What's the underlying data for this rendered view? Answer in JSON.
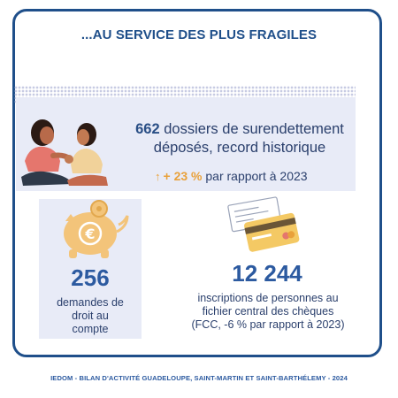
{
  "header": {
    "title": "...AU SERVICE DES PLUS FRAGILES"
  },
  "stat_dossiers": {
    "value": "662",
    "text_line1": " dossiers de surendettement",
    "text_line2": "déposés, record historique",
    "change_arrow": "↑",
    "change_value": "+ 23 %",
    "change_text": " par rapport à 2023"
  },
  "stat_compte": {
    "value": "256",
    "text_line1": "demandes de",
    "text_line2": "droit au",
    "text_line3": "compte"
  },
  "stat_fcc": {
    "value": "12 244",
    "text_line1": "inscriptions de personnes au",
    "text_line2": "fichier central des chèques",
    "text_line3": "(FCC, -6 % par rapport à 2023)"
  },
  "footer": {
    "text": "IEDOM - BILAN D'ACTIVITÉ GUADELOUPE, SAINT-MARTIN ET SAINT-BARTHÉLEMY - 2024"
  },
  "colors": {
    "primary": "#1f4f8a",
    "accent": "#e9a13b",
    "band": "#e8ebf7",
    "text": "#2a3f6c"
  },
  "icons": [
    "family-illustration",
    "piggy-bank-euro-icon",
    "check-and-card-icon"
  ]
}
